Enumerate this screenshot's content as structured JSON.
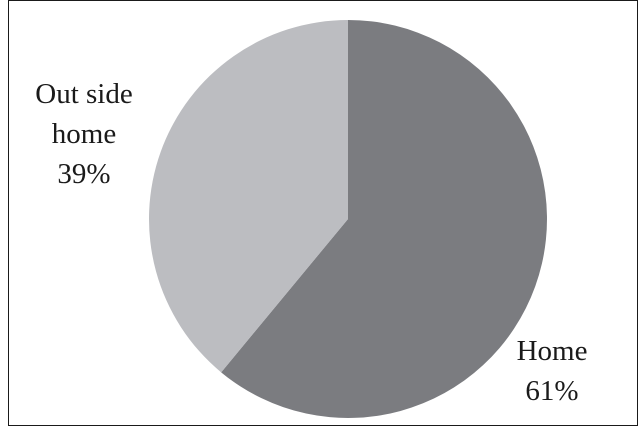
{
  "chart_data": {
    "type": "pie",
    "slices": [
      {
        "name": "Home",
        "value": 61,
        "label": "61%",
        "color": "#7b7c80"
      },
      {
        "name": "Out side home",
        "value": 39,
        "label": "39%",
        "color": "#bcbdc1"
      }
    ],
    "title": ""
  },
  "labels": {
    "home_name": "Home",
    "home_pct": "61%",
    "outside_line1": "Out side",
    "outside_line2": "home",
    "outside_pct": "39%"
  }
}
